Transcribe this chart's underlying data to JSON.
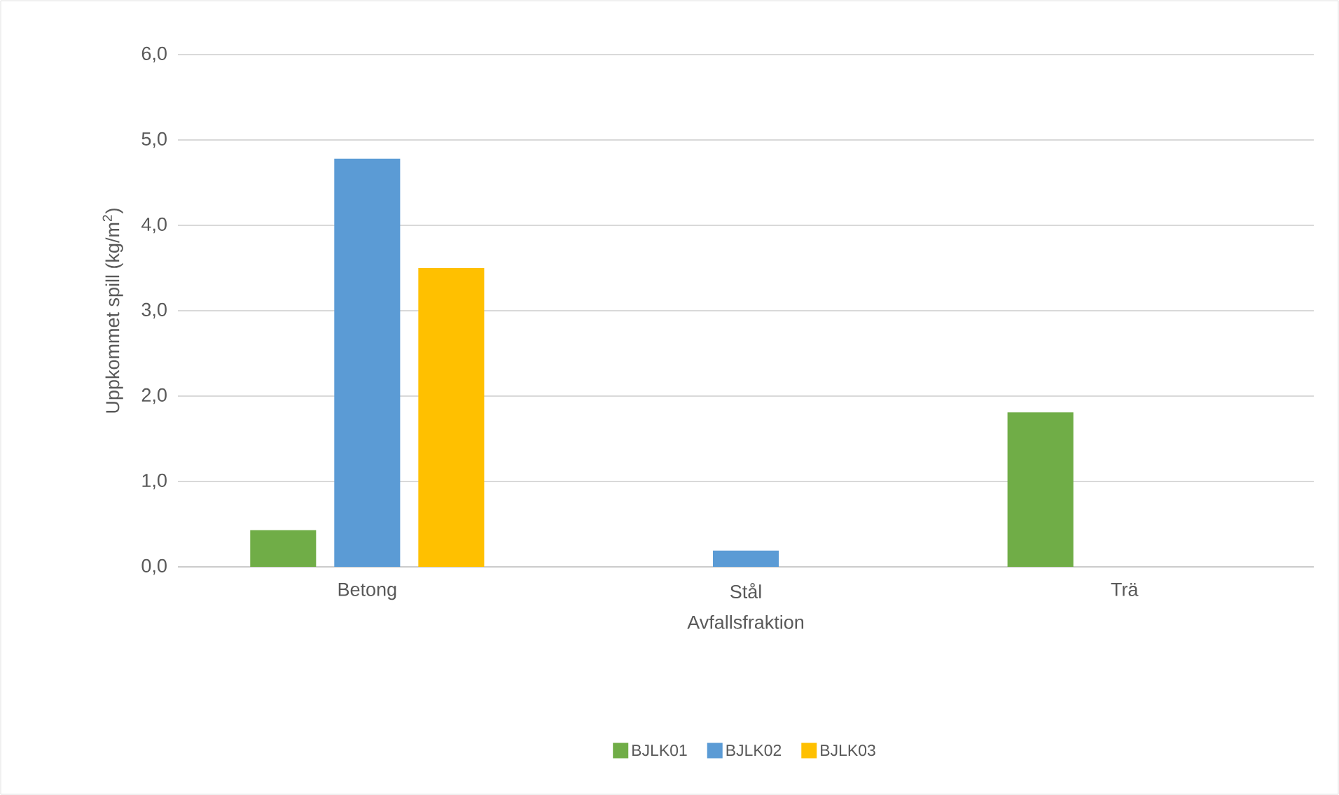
{
  "chart_data": {
    "type": "bar",
    "xlabel": "Avfallsfraktion",
    "ylabel": "Uppkommet spill (kg/m$^{2}$)",
    "categories": [
      "Betong",
      "Stål",
      "Trä"
    ],
    "series": [
      {
        "name": "BJLK01",
        "color": "#70ad47",
        "values": [
          0.43,
          0,
          1.81
        ]
      },
      {
        "name": "BJLK02",
        "color": "#5b9bd5",
        "values": [
          4.78,
          0.19,
          0
        ]
      },
      {
        "name": "BJLK03",
        "color": "#ffc000",
        "values": [
          3.5,
          0,
          0
        ]
      }
    ],
    "ylim": [
      0,
      6
    ],
    "yticks": [
      {
        "value": 0,
        "label": "0,0"
      },
      {
        "value": 1,
        "label": "1,0"
      },
      {
        "value": 2,
        "label": "2,0"
      },
      {
        "value": 3,
        "label": "3,0"
      },
      {
        "value": 4,
        "label": "4,0"
      },
      {
        "value": 5,
        "label": "5,0"
      },
      {
        "value": 6,
        "label": "6,0"
      }
    ],
    "grid": "y",
    "legend": "bottom"
  }
}
